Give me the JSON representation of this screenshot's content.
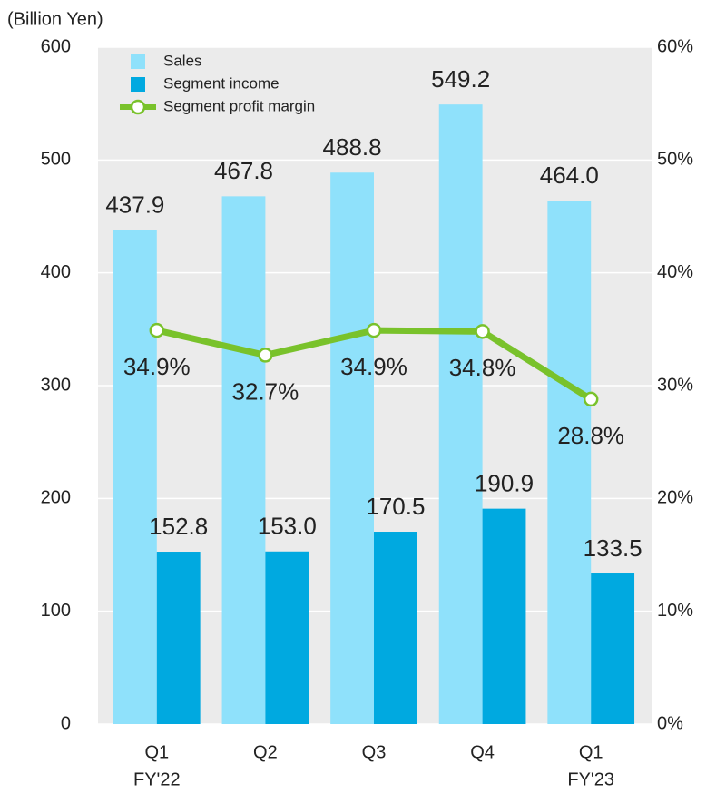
{
  "chart_data": {
    "type": "bar-line",
    "y_axis_label": "(Billion Yen)",
    "categories": [
      "Q1",
      "Q2",
      "Q3",
      "Q4",
      "Q1"
    ],
    "category_sublabels": [
      "FY'22",
      null,
      null,
      null,
      "FY'23"
    ],
    "series": [
      {
        "name": "Sales",
        "color": "#8fe1fb",
        "type": "bar",
        "values": [
          437.9,
          467.8,
          488.8,
          549.2,
          464.0
        ],
        "value_labels": [
          "437.9",
          "467.8",
          "488.8",
          "549.2",
          "464.0"
        ]
      },
      {
        "name": "Segment income",
        "color": "#00a9e0",
        "type": "bar",
        "values": [
          152.8,
          153.0,
          170.5,
          190.9,
          133.5
        ],
        "value_labels": [
          "152.8",
          "153.0",
          "170.5",
          "190.9",
          "133.5"
        ]
      },
      {
        "name": "Segment profit margin",
        "color": "#79c22b",
        "type": "line",
        "axis": "y2",
        "values": [
          34.9,
          32.7,
          34.9,
          34.8,
          28.8
        ],
        "value_labels": [
          "34.9%",
          "32.7%",
          "34.9%",
          "34.8%",
          "28.8%"
        ]
      }
    ],
    "ylim": [
      0,
      600
    ],
    "yticks": [
      0,
      100,
      200,
      300,
      400,
      500,
      600
    ],
    "y2lim": [
      0,
      60
    ],
    "y2ticks": [
      {
        "value": 0,
        "label": "0%"
      },
      {
        "value": 10,
        "label": "10%"
      },
      {
        "value": 20,
        "label": "20%"
      },
      {
        "value": 30,
        "label": "30%"
      },
      {
        "value": 40,
        "label": "40%"
      },
      {
        "value": 50,
        "label": "50%"
      },
      {
        "value": 60,
        "label": "60%"
      }
    ],
    "legend": "upper-left",
    "background": "#ebebeb",
    "grid": true
  }
}
